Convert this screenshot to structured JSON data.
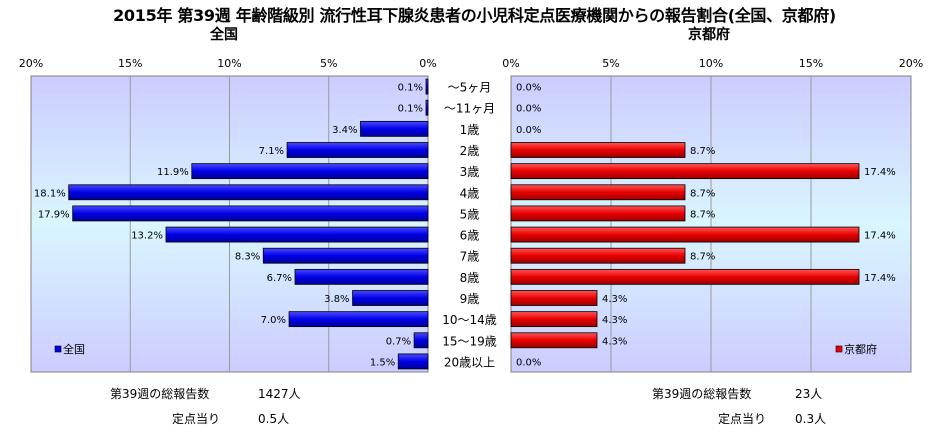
{
  "title": "2015年 第39週 年齢階級別 流行性耳下腺炎患者の小児科定点医療機関からの報告割合(全国、京都府)",
  "chart_data": [
    {
      "type": "bar",
      "orientation": "horizontal",
      "subtitle": "全国",
      "legend": "全国",
      "legend_position": "bottom-left",
      "color": "#0000ee",
      "xlim": [
        0,
        20
      ],
      "ticks": [
        "20%",
        "15%",
        "10%",
        "5%",
        "0%"
      ],
      "categories": [
        "～5ヶ月",
        "～11ヶ月",
        "1歳",
        "2歳",
        "3歳",
        "4歳",
        "5歳",
        "6歳",
        "7歳",
        "8歳",
        "9歳",
        "10～14歳",
        "15～19歳",
        "20歳以上"
      ],
      "values": [
        0.1,
        0.1,
        3.4,
        7.1,
        11.9,
        18.1,
        17.9,
        13.2,
        8.3,
        6.7,
        3.8,
        7.0,
        0.7,
        1.5
      ],
      "labels": [
        "0.1%",
        "0.1%",
        "3.4%",
        "7.1%",
        "11.9%",
        "18.1%",
        "17.9%",
        "13.2%",
        "8.3%",
        "6.7%",
        "3.8%",
        "7.0%",
        "0.7%",
        "1.5%"
      ],
      "grid": true
    },
    {
      "type": "bar",
      "orientation": "horizontal",
      "subtitle": "京都府",
      "legend": "京都府",
      "legend_position": "bottom-right",
      "color": "#ee0000",
      "xlim": [
        0,
        20
      ],
      "ticks": [
        "0%",
        "5%",
        "10%",
        "15%",
        "20%"
      ],
      "categories": [
        "～5ヶ月",
        "～11ヶ月",
        "1歳",
        "2歳",
        "3歳",
        "4歳",
        "5歳",
        "6歳",
        "7歳",
        "8歳",
        "9歳",
        "10～14歳",
        "15～19歳",
        "20歳以上"
      ],
      "values": [
        0.0,
        0.0,
        0.0,
        8.7,
        17.4,
        8.7,
        8.7,
        17.4,
        8.7,
        17.4,
        4.3,
        4.3,
        4.3,
        0.0
      ],
      "labels": [
        "0.0%",
        "0.0%",
        "0.0%",
        "8.7%",
        "17.4%",
        "8.7%",
        "8.7%",
        "17.4%",
        "8.7%",
        "17.4%",
        "4.3%",
        "4.3%",
        "4.3%",
        "0.0%"
      ],
      "grid": true
    }
  ],
  "summary": {
    "national": {
      "total_label": "第39週の総報告数",
      "total_value": "1427人",
      "per_label": "定点当り",
      "per_value": "0.5人"
    },
    "kyoto": {
      "total_label": "第39週の総報告数",
      "total_value": "23人",
      "per_label": "定点当り",
      "per_value": "0.3人"
    }
  }
}
